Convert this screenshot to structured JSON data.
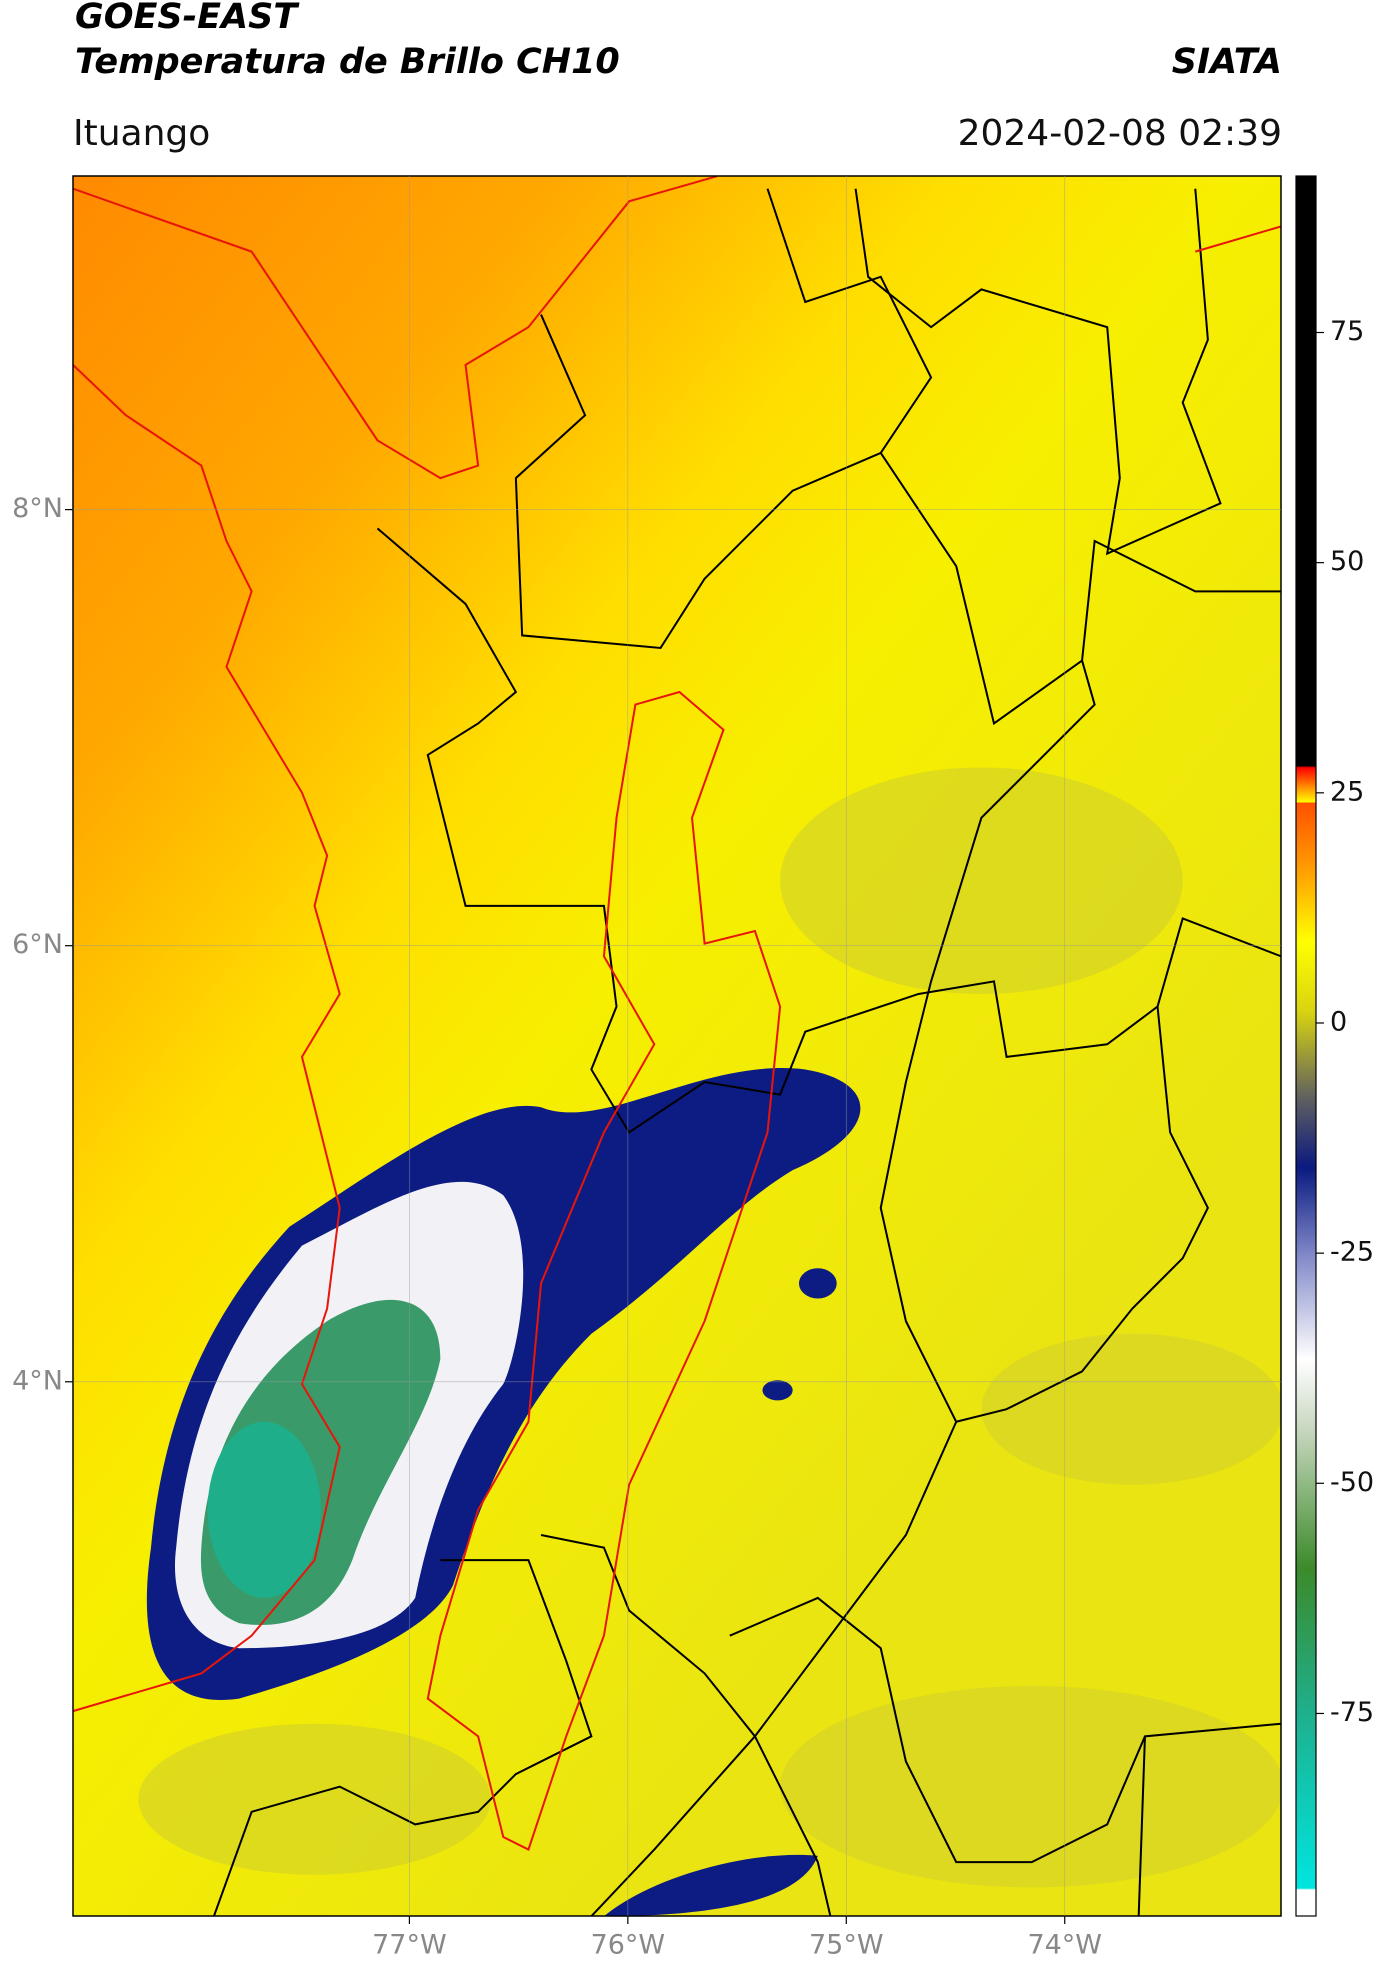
{
  "header": {
    "satellite": "GOES-EAST",
    "product": "Temperatura de Brillo CH10",
    "agency": "SIATA",
    "location": "Ituango",
    "datetime": "2024-02-08 02:39"
  },
  "map": {
    "xlim": [
      -78.54,
      -73.01
    ],
    "ylim": [
      1.55,
      9.53
    ],
    "xticks": [
      {
        "value": -77,
        "label": "77°W"
      },
      {
        "value": -76,
        "label": "76°W"
      },
      {
        "value": -75,
        "label": "75°W"
      },
      {
        "value": -74,
        "label": "74°W"
      }
    ],
    "yticks": [
      {
        "value": 4,
        "label": "4°N"
      },
      {
        "value": 6,
        "label": "6°N"
      },
      {
        "value": 8,
        "label": "8°N"
      }
    ]
  },
  "colorbar": {
    "lim": [
      -97,
      92
    ],
    "ticks": [
      -75,
      -50,
      -25,
      0,
      25,
      50,
      75
    ]
  }
}
